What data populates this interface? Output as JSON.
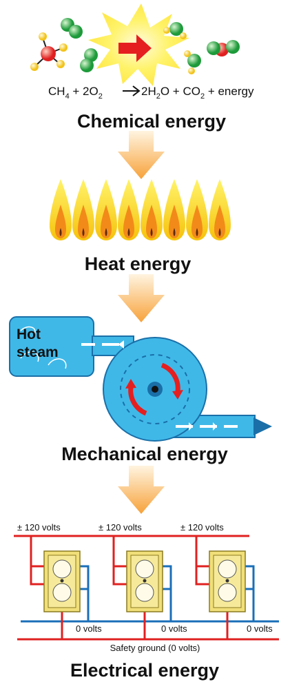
{
  "equation": {
    "p1": "CH",
    "s1": "4",
    "p2": " + 2O",
    "s2": "2",
    "p3": "2H",
    "s3": "2",
    "p4": "O + CO",
    "s4": "2",
    "p5": " + energy"
  },
  "stages": {
    "chemical": "Chemical energy",
    "heat": "Heat energy",
    "steam": [
      "Hot",
      "steam"
    ],
    "mechanical": "Mechanical energy",
    "electrical": "Electrical energy"
  },
  "circuit": {
    "live": [
      "± 120 volts",
      "± 120 volts",
      "± 120 volts"
    ],
    "neutral": [
      "0 volts",
      "0 volts",
      "0 volts"
    ],
    "ground": "Safety ground (0 volts)"
  }
}
